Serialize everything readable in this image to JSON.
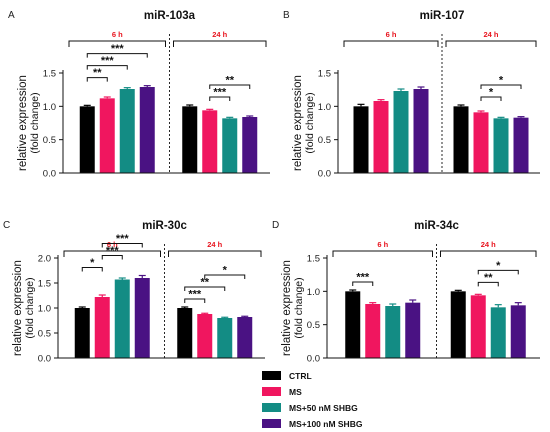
{
  "chart_data": [
    {
      "type": "bar",
      "panel": "A",
      "title": "miR-103a",
      "ylabel": "relative expression",
      "ylabel2": "(fold change)",
      "ylim": [
        0,
        1.5
      ],
      "yticks": [
        "0.0",
        "0.5",
        "1.0",
        "1.5"
      ],
      "groups": [
        {
          "label": "6 h",
          "values": [
            1.0,
            1.12,
            1.26,
            1.29
          ],
          "errors": [
            0.015,
            0.02,
            0.02,
            0.02
          ]
        },
        {
          "label": "24 h",
          "values": [
            1.0,
            0.94,
            0.82,
            0.84
          ],
          "errors": [
            0.02,
            0.015,
            0.015,
            0.015
          ]
        }
      ],
      "significance": [
        {
          "group": 0,
          "from": 0,
          "to": 1,
          "label": "**"
        },
        {
          "group": 0,
          "from": 0,
          "to": 2,
          "label": "***"
        },
        {
          "group": 0,
          "from": 0,
          "to": 3,
          "label": "***"
        },
        {
          "group": 1,
          "from": 1,
          "to": 2,
          "label": "***"
        },
        {
          "group": 1,
          "from": 1,
          "to": 3,
          "label": "**"
        }
      ]
    },
    {
      "type": "bar",
      "panel": "B",
      "title": "miR-107",
      "ylabel": "relative expression",
      "ylabel2": "(fold change)",
      "ylim": [
        0,
        1.5
      ],
      "yticks": [
        "0.0",
        "0.5",
        "1.0",
        "1.5"
      ],
      "groups": [
        {
          "label": "6 h",
          "values": [
            1.0,
            1.08,
            1.23,
            1.26
          ],
          "errors": [
            0.03,
            0.02,
            0.03,
            0.03
          ]
        },
        {
          "label": "24 h",
          "values": [
            1.0,
            0.91,
            0.82,
            0.83
          ],
          "errors": [
            0.02,
            0.02,
            0.015,
            0.015
          ]
        }
      ],
      "significance": [
        {
          "group": 1,
          "from": 1,
          "to": 2,
          "label": "*"
        },
        {
          "group": 1,
          "from": 1,
          "to": 3,
          "label": "*"
        }
      ]
    },
    {
      "type": "bar",
      "panel": "C",
      "title": "miR-30c",
      "ylabel": "relative expression",
      "ylabel2": "(fold change)",
      "ylim": [
        0,
        2.0
      ],
      "yticks": [
        "0.0",
        "0.5",
        "1.0",
        "1.5",
        "2.0"
      ],
      "groups": [
        {
          "label": "6 h",
          "values": [
            1.0,
            1.22,
            1.57,
            1.6
          ],
          "errors": [
            0.02,
            0.04,
            0.03,
            0.05
          ]
        },
        {
          "label": "24 h",
          "values": [
            1.0,
            0.88,
            0.8,
            0.82
          ],
          "errors": [
            0.02,
            0.015,
            0.015,
            0.015
          ]
        }
      ],
      "significance": [
        {
          "group": 0,
          "from": 0,
          "to": 1,
          "label": "*"
        },
        {
          "group": 0,
          "from": 1,
          "to": 2,
          "label": "***"
        },
        {
          "group": 0,
          "from": 1,
          "to": 3,
          "label": "***"
        },
        {
          "group": 1,
          "from": 0,
          "to": 1,
          "label": "***"
        },
        {
          "group": 1,
          "from": 0,
          "to": 2,
          "label": "**"
        },
        {
          "group": 1,
          "from": 1,
          "to": 3,
          "label": "*"
        }
      ]
    },
    {
      "type": "bar",
      "panel": "D",
      "title": "miR-34c",
      "ylabel": "relative expression",
      "ylabel2": "(fold change)",
      "ylim": [
        0,
        1.5
      ],
      "yticks": [
        "0.0",
        "0.5",
        "1.0",
        "1.5"
      ],
      "groups": [
        {
          "label": "6 h",
          "values": [
            1.0,
            0.81,
            0.78,
            0.83
          ],
          "errors": [
            0.02,
            0.02,
            0.03,
            0.04
          ]
        },
        {
          "label": "24 h",
          "values": [
            1.0,
            0.94,
            0.76,
            0.79
          ],
          "errors": [
            0.015,
            0.015,
            0.04,
            0.04
          ]
        }
      ],
      "significance": [
        {
          "group": 0,
          "from": 0,
          "to": 1,
          "label": "***"
        },
        {
          "group": 1,
          "from": 1,
          "to": 2,
          "label": "**"
        },
        {
          "group": 1,
          "from": 1,
          "to": 3,
          "label": "*"
        }
      ]
    }
  ],
  "legend": [
    {
      "label": "CTRL",
      "color": "#000000"
    },
    {
      "label": "MS",
      "color": "#f0165f"
    },
    {
      "label": "MS+50 nM SHBG",
      "color": "#138c84"
    },
    {
      "label": "MS+100 nM SHBG",
      "color": "#4a1283"
    }
  ],
  "group_label_color": "#e8141e"
}
